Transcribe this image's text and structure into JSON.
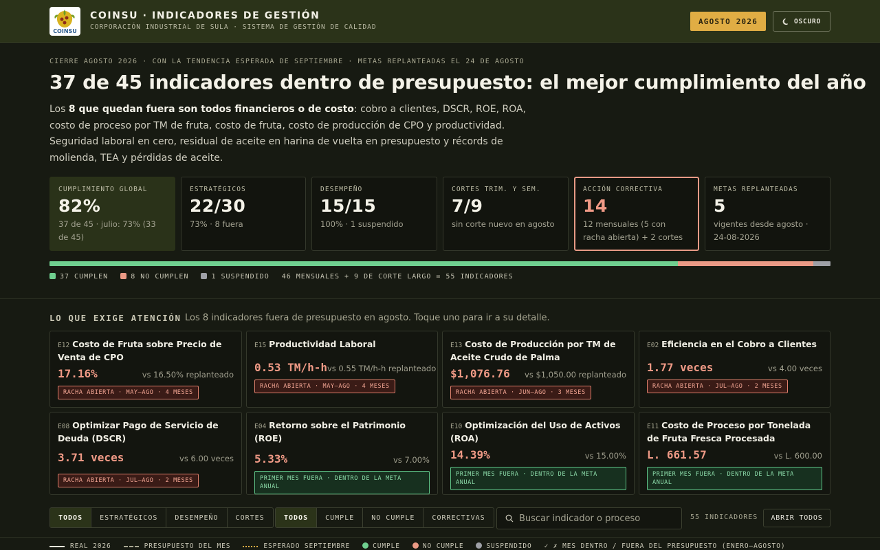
{
  "header": {
    "logo_text": "COINSU",
    "title": "COINSU · INDICADORES DE GESTIÓN",
    "subtitle": "CORPORACIÓN INDUSTRIAL DE SULA · SISTEMA DE GESTIÓN DE CALIDAD",
    "month_badge": "AGOSTO 2026",
    "theme_button": "OSCURO",
    "theme_icon": "moon-icon"
  },
  "hero": {
    "eyebrow": "CIERRE AGOSTO 2026 · CON LA TENDENCIA ESPERADA DE SEPTIEMBRE · METAS REPLANTEADAS EL 24 DE AGOSTO",
    "headline": "37 de 45 indicadores dentro de presupuesto: el mejor cumplimiento del año",
    "summary_prefix": "Los ",
    "summary_bold": "8 que quedan fuera son todos financieros o de costo",
    "summary_rest": ": cobro a clientes, DSCR, ROE, ROA, costo de proceso por TM de fruta, costo de fruta, costo de producción de CPO y productividad. Seguridad laboral en cero, residual de aceite en harina de vuelta en presupuesto y récords de molienda, TEA y pérdidas de aceite."
  },
  "kpis": [
    {
      "label": "CUMPLIMIENTO GLOBAL",
      "value": "82%",
      "note": "37 de 45 · julio: 73% (33 de 45)"
    },
    {
      "label": "ESTRATÉGICOS",
      "value": "22/30",
      "note": "73% · 8 fuera"
    },
    {
      "label": "DESEMPEÑO",
      "value": "15/15",
      "note": "100% · 1 suspendido"
    },
    {
      "label": "CORTES TRIM. Y SEM.",
      "value": "7/9",
      "note": "sin corte nuevo en agosto"
    },
    {
      "label": "ACCIÓN CORRECTIVA",
      "value": "14",
      "note": "12 mensuales (5 con racha abierta) + 2 cortes"
    },
    {
      "label": "METAS REPLANTEADAS",
      "value": "5",
      "note": "vigentes desde agosto · 24-08-2026"
    }
  ],
  "status_bar": {
    "cumplen": 37,
    "no_cumplen": 8,
    "suspendido": 1,
    "colors": {
      "cumplen": "#6fcf8f",
      "no_cumplen": "#ea9a85",
      "suspendido": "#9ea0a6"
    }
  },
  "legend": {
    "cumplen": "37 CUMPLEN",
    "no_cumplen": "8 NO CUMPLEN",
    "suspendido": "1 SUSPENDIDO",
    "total": "46 MENSUALES + 9 DE CORTE LARGO = 55 INDICADORES"
  },
  "attention": {
    "title": "LO QUE EXIGE ATENCIÓN",
    "subtitle": "Los 8 indicadores fuera de presupuesto en agosto. Toque uno para ir a su detalle.",
    "cards": [
      {
        "code": "E12",
        "title": "Costo de Fruta sobre Precio de Venta de CPO",
        "value": "17.16%",
        "target": "vs 16.50% replanteado",
        "tag": "RACHA ABIERTA · MAY–AGO · 4 MESES",
        "tag_type": "red"
      },
      {
        "code": "E15",
        "title": "Productividad Laboral",
        "value": "0.53 TM/h-h",
        "target": "vs 0.55 TM/h-h replanteado",
        "tag": "RACHA ABIERTA · MAY–AGO · 4 MESES",
        "tag_type": "red"
      },
      {
        "code": "E13",
        "title": "Costo de Producción por TM de Aceite Crudo de Palma",
        "value": "$1,076.76",
        "target": "vs $1,050.00 replanteado",
        "tag": "RACHA ABIERTA · JUN–AGO · 3 MESES",
        "tag_type": "red"
      },
      {
        "code": "E02",
        "title": "Eficiencia en el Cobro a Clientes",
        "value": "1.77 veces",
        "target": "vs 4.00 veces",
        "tag": "RACHA ABIERTA · JUL–AGO · 2 MESES",
        "tag_type": "red"
      },
      {
        "code": "E08",
        "title": "Optimizar Pago de Servicio de Deuda (DSCR)",
        "value": "3.71 veces",
        "target": "vs 6.00 veces",
        "tag": "RACHA ABIERTA · JUL–AGO · 2 MESES",
        "tag_type": "red"
      },
      {
        "code": "E04",
        "title": "Retorno sobre el Patrimonio (ROE)",
        "value": "5.33%",
        "target": "vs 7.00%",
        "tag": "PRIMER MES FUERA · DENTRO DE LA META ANUAL",
        "tag_type": "green"
      },
      {
        "code": "E10",
        "title": "Optimización del Uso de Activos (ROA)",
        "value": "14.39%",
        "target": "vs 15.00%",
        "tag": "PRIMER MES FUERA · DENTRO DE LA META ANUAL",
        "tag_type": "green"
      },
      {
        "code": "E11",
        "title": "Costo de Proceso por Tonelada de Fruta Fresca Procesada",
        "value": "L. 661.57",
        "target": "vs L. 600.00",
        "tag": "PRIMER MES FUERA · DENTRO DE LA META ANUAL",
        "tag_type": "green"
      }
    ]
  },
  "filters": {
    "type_group": [
      "TODOS",
      "ESTRATÉGICOS",
      "DESEMPEÑO",
      "CORTES"
    ],
    "status_group": [
      "TODOS",
      "CUMPLE",
      "NO CUMPLE",
      "CORRECTIVAS"
    ],
    "search_placeholder": "Buscar indicador o proceso",
    "search_value": "",
    "count": "55 INDICADORES",
    "open_all": "ABRIR TODOS"
  },
  "footer_legend": {
    "real": "REAL 2026",
    "budget": "PRESUPUESTO DEL MES",
    "expected": "ESPERADO SEPTIEMBRE",
    "cumple": "CUMPLE",
    "no_cumple": "NO CUMPLE",
    "suspendido": "SUSPENDIDO",
    "checks": "✓ ✗ MES DENTRO / FUERA DEL PRESUPUESTO (ENERO–AGOSTO)"
  }
}
